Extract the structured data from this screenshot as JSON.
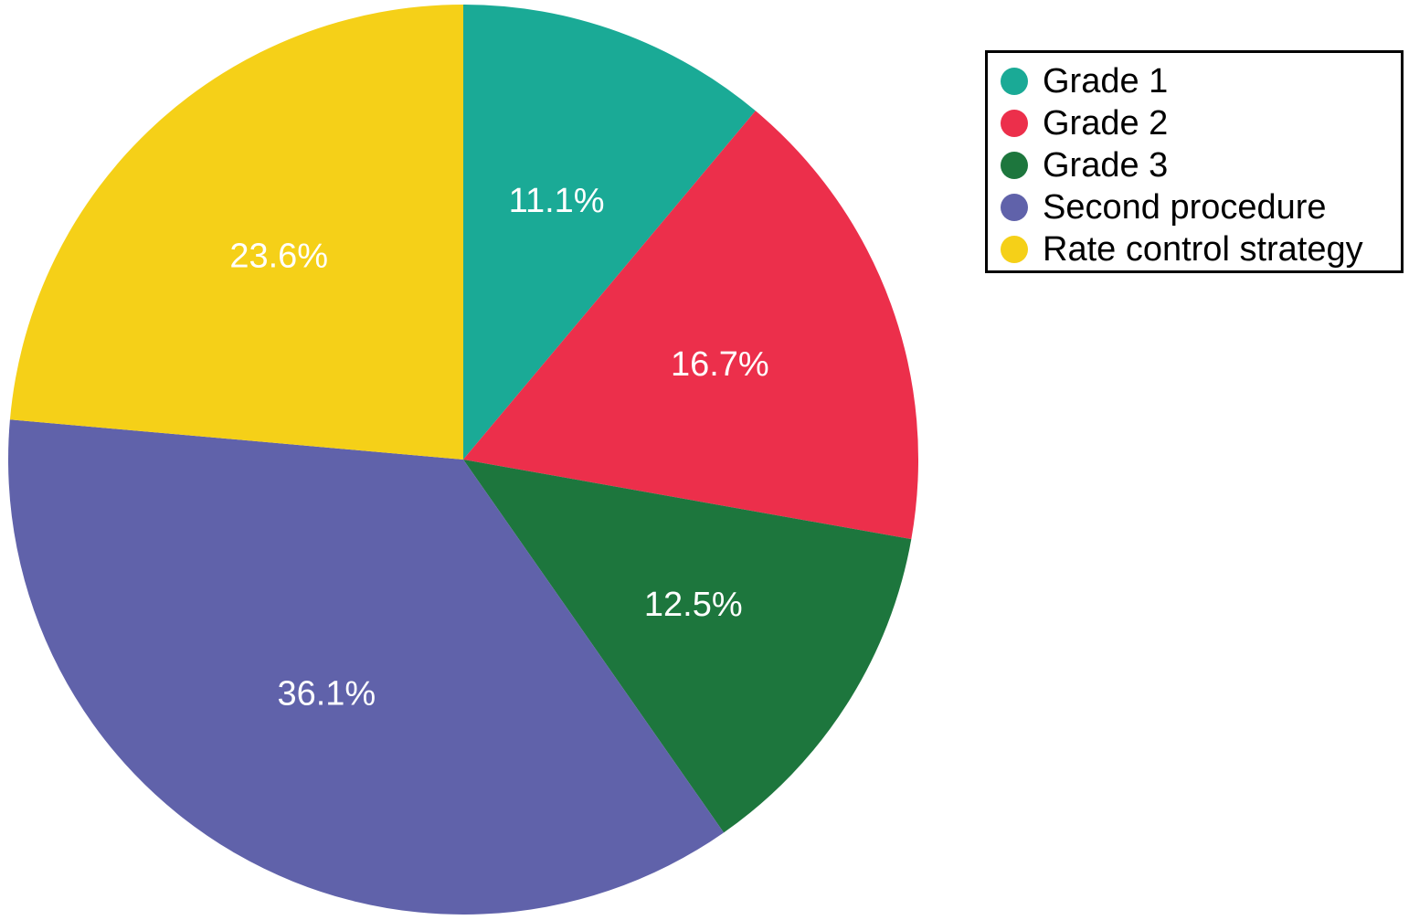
{
  "chart_data": {
    "type": "pie",
    "title": "",
    "start_angle_deg": 0,
    "direction": "clockwise",
    "legend_position": "top-right",
    "slices": [
      {
        "label": "Grade 1",
        "value": 11.1,
        "value_label": "11.1%",
        "color": "#1aaa96"
      },
      {
        "label": "Grade 2",
        "value": 16.7,
        "value_label": "16.7%",
        "color": "#ec2f4b"
      },
      {
        "label": "Grade 3",
        "value": 12.5,
        "value_label": "12.5%",
        "color": "#1d763d"
      },
      {
        "label": "Second procedure",
        "value": 36.1,
        "value_label": "36.1%",
        "color": "#6062aa"
      },
      {
        "label": "Rate control strategy",
        "value": 23.6,
        "value_label": "23.6%",
        "color": "#f5d018"
      }
    ]
  }
}
